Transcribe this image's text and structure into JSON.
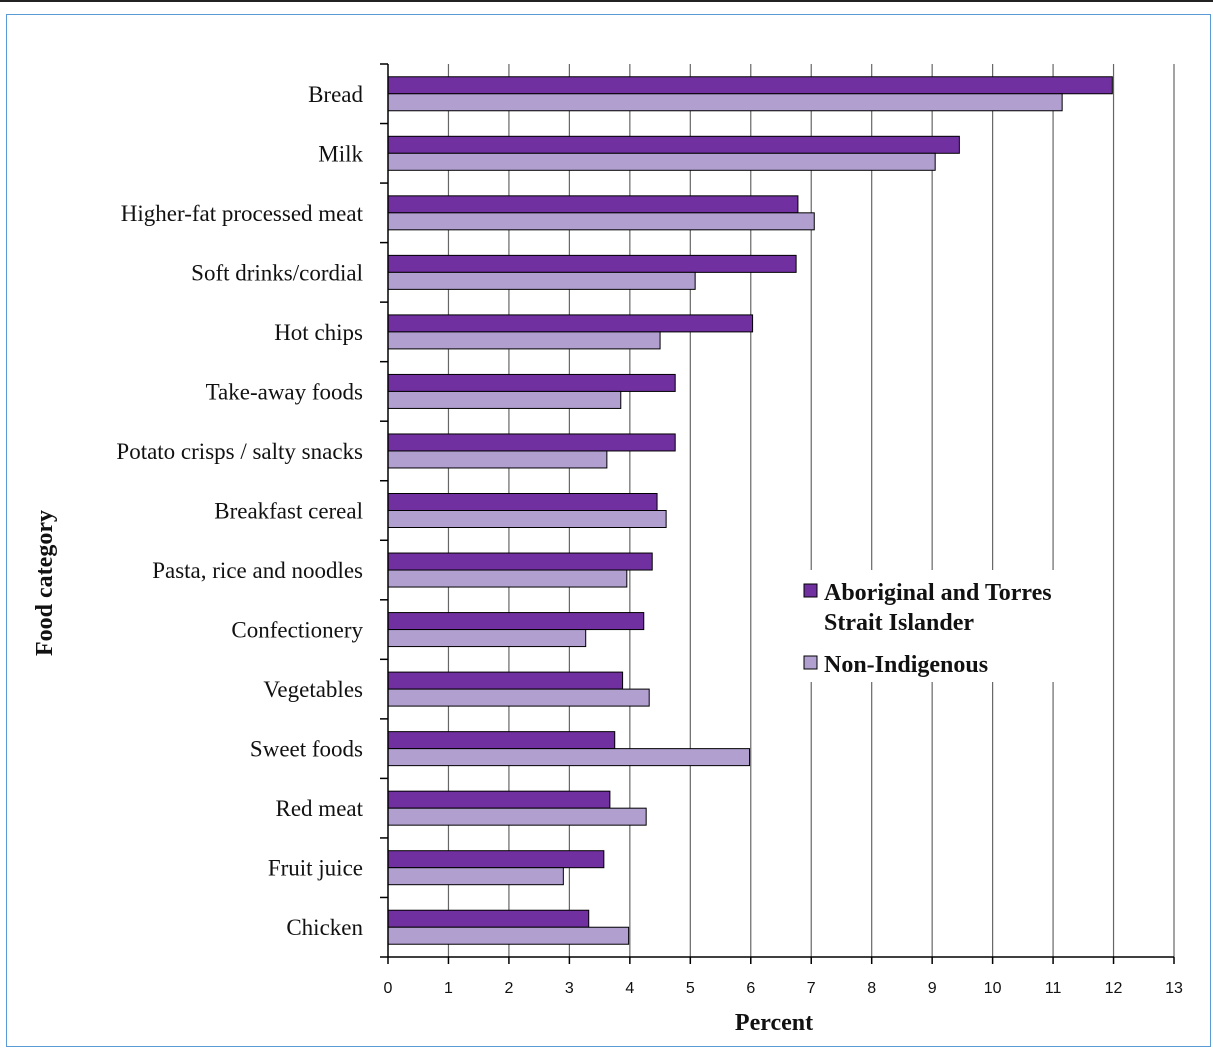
{
  "chart_data": {
    "type": "bar",
    "orientation": "horizontal",
    "categories": [
      "Bread",
      "Milk",
      "Higher-fat processed meat",
      "Soft drinks/cordial",
      "Hot chips",
      "Take-away foods",
      "Potato crisps / salty snacks",
      "Breakfast cereal",
      "Pasta, rice and noodles",
      "Confectionery",
      "Vegetables",
      "Sweet foods",
      "Red meat",
      "Fruit juice",
      "Chicken"
    ],
    "series": [
      {
        "name": "Aboriginal and Torres Strait Islander",
        "color": "#7030a0",
        "values": [
          11.98,
          9.45,
          6.78,
          6.75,
          6.03,
          4.75,
          4.75,
          4.45,
          4.37,
          4.23,
          3.88,
          3.75,
          3.67,
          3.57,
          3.32
        ]
      },
      {
        "name": "Non-Indigenous",
        "color": "#b09fcf",
        "values": [
          11.15,
          9.05,
          7.05,
          5.08,
          4.5,
          3.85,
          3.62,
          4.6,
          3.95,
          3.27,
          4.32,
          5.98,
          4.27,
          2.9,
          3.98
        ]
      }
    ],
    "xlabel": "Percent",
    "ylabel": "Food category",
    "xlim": [
      0,
      13
    ],
    "xticks": [
      "0",
      "1",
      "2",
      "3",
      "4",
      "5",
      "6",
      "7",
      "8",
      "9",
      "10",
      "11",
      "12",
      "13"
    ],
    "grid": "vertical",
    "legend": {
      "placement": "right-middle",
      "entries": [
        {
          "line1": "Aboriginal and Torres",
          "line2": "Strait Islander"
        },
        {
          "line1": "Non-Indigenous",
          "line2": ""
        }
      ]
    }
  }
}
